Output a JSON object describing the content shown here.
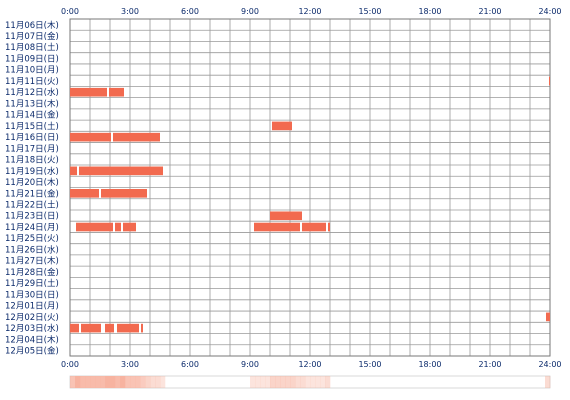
{
  "chart_data": {
    "type": "timeline",
    "x_ticks": [
      "0:00",
      "3:00",
      "6:00",
      "9:00",
      "12:00",
      "15:00",
      "18:00",
      "21:00",
      "24:00"
    ],
    "x_range_hours": [
      0,
      24
    ],
    "days": [
      "11月06日(木)",
      "11月07日(金)",
      "11月08日(土)",
      "11月09日(日)",
      "11月10日(月)",
      "11月11日(火)",
      "11月12日(水)",
      "11月13日(木)",
      "11月14日(金)",
      "11月15日(土)",
      "11月16日(日)",
      "11月17日(月)",
      "11月18日(火)",
      "11月19日(水)",
      "11月20日(木)",
      "11月21日(金)",
      "11月22日(土)",
      "11月23日(日)",
      "11月24日(月)",
      "11月25日(火)",
      "11月26日(水)",
      "11月27日(木)",
      "11月28日(金)",
      "11月29日(土)",
      "11月30日(日)",
      "12月01日(月)",
      "12月02日(火)",
      "12月03日(水)",
      "12月04日(木)",
      "12月05日(金)"
    ],
    "segments": [
      {
        "day": 5,
        "start": 23.95,
        "end": 24.0
      },
      {
        "day": 6,
        "start": 0.0,
        "end": 1.85
      },
      {
        "day": 6,
        "start": 1.95,
        "end": 2.7
      },
      {
        "day": 9,
        "start": 10.1,
        "end": 11.1
      },
      {
        "day": 10,
        "start": 0.0,
        "end": 2.05
      },
      {
        "day": 10,
        "start": 2.15,
        "end": 4.5
      },
      {
        "day": 13,
        "start": 0.0,
        "end": 0.35
      },
      {
        "day": 13,
        "start": 0.45,
        "end": 4.65
      },
      {
        "day": 15,
        "start": 0.0,
        "end": 1.45
      },
      {
        "day": 15,
        "start": 1.55,
        "end": 3.85
      },
      {
        "day": 17,
        "start": 10.0,
        "end": 11.6
      },
      {
        "day": 18,
        "start": 0.3,
        "end": 2.15
      },
      {
        "day": 18,
        "start": 2.25,
        "end": 2.55
      },
      {
        "day": 18,
        "start": 2.65,
        "end": 3.3
      },
      {
        "day": 18,
        "start": 9.2,
        "end": 11.5
      },
      {
        "day": 18,
        "start": 11.6,
        "end": 12.8
      },
      {
        "day": 18,
        "start": 12.9,
        "end": 13.0
      },
      {
        "day": 26,
        "start": 23.8,
        "end": 24.0
      },
      {
        "day": 27,
        "start": 0.0,
        "end": 0.45
      },
      {
        "day": 27,
        "start": 0.55,
        "end": 1.55
      },
      {
        "day": 27,
        "start": 1.75,
        "end": 2.2
      },
      {
        "day": 27,
        "start": 2.35,
        "end": 3.45
      },
      {
        "day": 27,
        "start": 3.55,
        "end": 3.65
      }
    ],
    "colors": {
      "bar": "#f26a4f",
      "grid": "#9a9a9a",
      "border": "#777777",
      "text": "#0b2a6b",
      "density_low": "#fde6dc",
      "density_high": "#f7b3a0"
    }
  }
}
